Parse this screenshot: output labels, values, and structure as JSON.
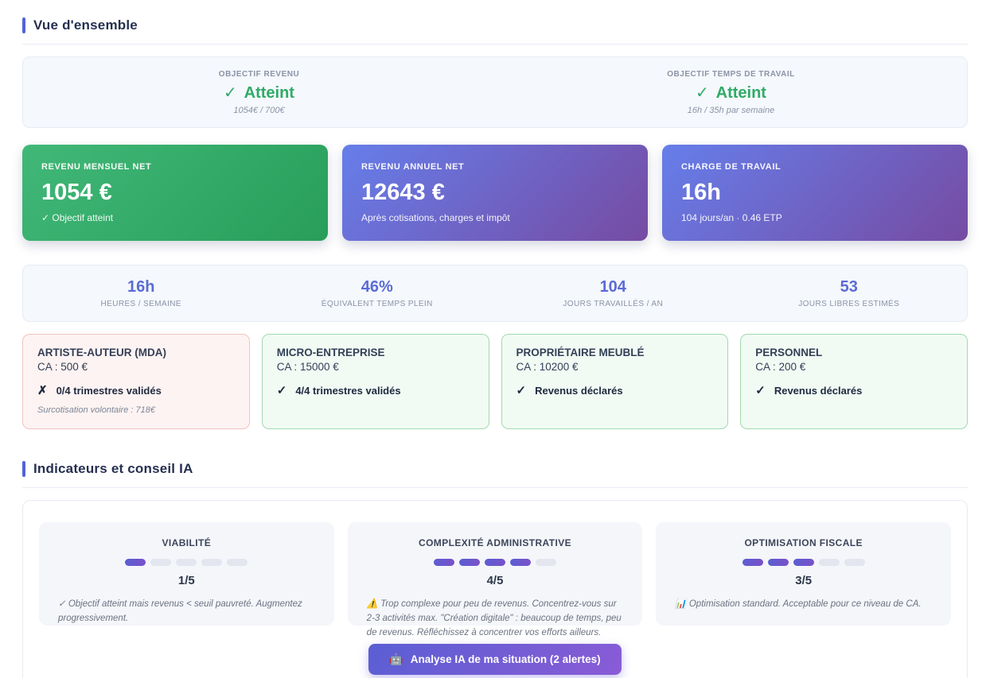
{
  "colors": {
    "accent": "#5263d8",
    "success_green": "#2fab66",
    "stat_indigo": "#5b6bd5",
    "kpi_green_gradient": [
      "#41b878",
      "#289e5a"
    ],
    "kpi_purple_gradient": [
      "#667eea",
      "#764ba2"
    ],
    "alert_card_border": "#f2c4c0",
    "ok_card_border": "#a3d9b1",
    "button_gradient": [
      "#5a5ed3",
      "#8a5cd6"
    ]
  },
  "overview": {
    "title": "Vue d'ensemble"
  },
  "objectives": [
    {
      "label": "OBJECTIF REVENU",
      "check": "✓",
      "status": "Atteint",
      "detail": "1054€ / 700€"
    },
    {
      "label": "OBJECTIF TEMPS DE TRAVAIL",
      "check": "✓",
      "status": "Atteint",
      "detail": "16h / 35h par semaine"
    }
  ],
  "kpi_cards": [
    {
      "label": "REVENU MENSUEL NET",
      "value": "1054 €",
      "sub": "✓ Objectif atteint",
      "theme": "green"
    },
    {
      "label": "REVENU ANNUEL NET",
      "value": "12643 €",
      "sub": "Après cotisations, charges et impôt",
      "theme": "purple"
    },
    {
      "label": "CHARGE DE TRAVAIL",
      "value": "16h",
      "sub": "104 jours/an · 0.46 ETP",
      "theme": "purple"
    }
  ],
  "stats": [
    {
      "value": "16h",
      "label": "HEURES / SEMAINE"
    },
    {
      "value": "46%",
      "label": "ÉQUIVALENT TEMPS PLEIN"
    },
    {
      "value": "104",
      "label": "JOURS TRAVAILLÉS / AN"
    },
    {
      "value": "53",
      "label": "JOURS LIBRES ESTIMÉS"
    }
  ],
  "activities": [
    {
      "title": "ARTISTE-AUTEUR (MDA)",
      "ca": "CA : 500 €",
      "status_icon": "✗",
      "status": "0/4 trimestres validés",
      "note": "Surcotisation volontaire : 718€",
      "theme": "red"
    },
    {
      "title": "MICRO-ENTREPRISE",
      "ca": "CA : 15000 €",
      "status_icon": "✓",
      "status": "4/4 trimestres validés",
      "note": "",
      "theme": "green"
    },
    {
      "title": "PROPRIÉTAIRE MEUBLÉ",
      "ca": "CA : 10200 €",
      "status_icon": "✓",
      "status": "Revenus déclarés",
      "note": "",
      "theme": "green"
    },
    {
      "title": "PERSONNEL",
      "ca": "CA : 200 €",
      "status_icon": "✓",
      "status": "Revenus déclarés",
      "note": "",
      "theme": "green"
    }
  ],
  "indicators_section": {
    "title": "Indicateurs et conseil IA"
  },
  "indicators": [
    {
      "title": "VIABILITÉ",
      "score": 1,
      "max": 5,
      "score_label": "1/5",
      "advice": "✓ Objectif atteint mais revenus < seuil pauvreté. Augmentez progressivement."
    },
    {
      "title": "COMPLEXITÉ ADMINISTRATIVE",
      "score": 4,
      "max": 5,
      "score_label": "4/5",
      "advice": "⚠️ Trop complexe pour peu de revenus. Concentrez-vous sur 2-3 activités max. \"Création digitale\" : beaucoup de temps, peu de revenus. Réfléchissez à concentrer vos efforts ailleurs."
    },
    {
      "title": "OPTIMISATION FISCALE",
      "score": 3,
      "max": 5,
      "score_label": "3/5",
      "advice": "📊 Optimisation standard. Acceptable pour ce niveau de CA."
    }
  ],
  "ai_button": {
    "icon": "🤖",
    "label": "Analyse IA de ma situation (2 alertes)"
  }
}
